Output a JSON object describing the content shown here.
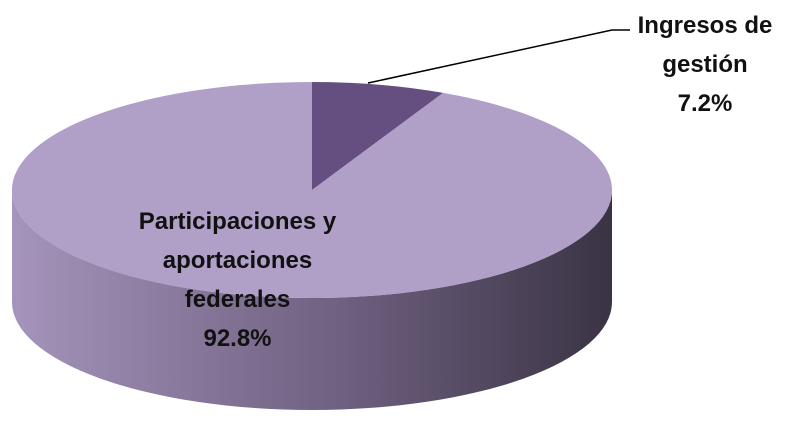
{
  "chart_data": {
    "type": "pie3d",
    "categories": [
      "Ingresos de gestión",
      "Participaciones y aportaciones federales"
    ],
    "values": [
      7.2,
      92.8
    ],
    "value_labels": [
      "7.2%",
      "92.8%"
    ],
    "colors": [
      "#654f80",
      "#b09fc7"
    ]
  }
}
